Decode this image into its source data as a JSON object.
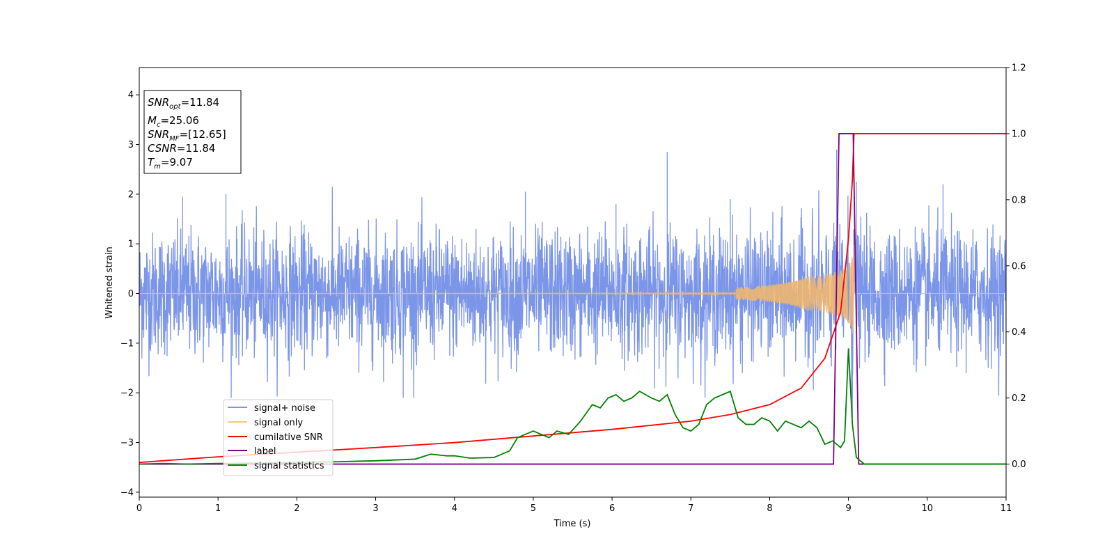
{
  "chart_data": {
    "type": "line",
    "xlabel": "Time (s)",
    "ylabel": "Whitened strain",
    "xlim": [
      0,
      11
    ],
    "ylim": [
      -4.1,
      4.55
    ],
    "y2lim": [
      -0.1,
      1.2
    ],
    "xticks": [
      "0",
      "1",
      "2",
      "3",
      "4",
      "5",
      "6",
      "7",
      "8",
      "9",
      "10",
      "11"
    ],
    "yticks": [
      "−4",
      "−3",
      "−2",
      "−1",
      "0",
      "1",
      "2",
      "3",
      "4"
    ],
    "y2ticks": [
      "0.0",
      "0.2",
      "0.4",
      "0.6",
      "0.8",
      "1.0",
      "1.2"
    ],
    "info_box": {
      "snr_opt": {
        "sym": "SNR",
        "sub": "opt",
        "value": "=11.84"
      },
      "mc": {
        "sym": "M",
        "sub": "c",
        "value": "=25.06"
      },
      "snr_mf": {
        "sym": "SNR",
        "sub": "MF",
        "value": "=[12.65]"
      },
      "csnr": {
        "sym": "CSNR",
        "sub": "",
        "value": "=11.84"
      },
      "tm": {
        "sym": "T",
        "sub": "m",
        "value": "=9.07"
      }
    },
    "legend": {
      "position": "lower-left",
      "entries": [
        {
          "label": "signal+ noise",
          "color": "#7b95e8"
        },
        {
          "label": "signal only",
          "color": "#f5c97a"
        },
        {
          "label": "cumilative SNR",
          "color": "#ff0000"
        },
        {
          "label": "label",
          "color": "#800080"
        },
        {
          "label": "signal statistics",
          "color": "#008000"
        }
      ]
    },
    "series": [
      {
        "name": "signal+ noise",
        "axis": "left",
        "color": "#6d8ae6",
        "description_type": "noise",
        "sample_count": 3300,
        "std": 0.62,
        "peaks": [
          [
            0.55,
            1.95
          ],
          [
            1.1,
            2.0
          ],
          [
            2.45,
            2.15
          ],
          [
            3.35,
            -2.1
          ],
          [
            4.9,
            2.05
          ],
          [
            6.05,
            1.8
          ],
          [
            6.7,
            2.85
          ],
          [
            7.5,
            1.9
          ],
          [
            8.85,
            2.9
          ],
          [
            9.05,
            -2.5
          ],
          [
            9.1,
            2.25
          ],
          [
            10.2,
            2.2
          ]
        ]
      },
      {
        "name": "signal only",
        "axis": "left",
        "color": "#f5b86a",
        "description_type": "chirp",
        "merger_time": 9.07,
        "peak_amplitude": 1.2
      },
      {
        "name": "cumilative SNR",
        "axis": "right",
        "color": "#ff0000",
        "x": [
          0,
          1,
          2,
          3,
          4,
          5,
          6,
          7,
          7.5,
          8,
          8.4,
          8.7,
          8.9,
          9.0,
          9.05,
          9.07,
          11
        ],
        "y": [
          0.005,
          0.022,
          0.036,
          0.05,
          0.065,
          0.085,
          0.105,
          0.13,
          0.15,
          0.18,
          0.23,
          0.32,
          0.46,
          0.68,
          0.86,
          1.0,
          1.0
        ]
      },
      {
        "name": "label",
        "axis": "right",
        "color": "#800080",
        "x": [
          0,
          8.81,
          8.88,
          9.06,
          9.13,
          11
        ],
        "y": [
          0,
          0,
          1,
          1,
          0,
          0
        ]
      },
      {
        "name": "signal statistics",
        "axis": "right",
        "color": "#008000",
        "x": [
          0,
          0.3,
          0.6,
          1,
          1.5,
          2,
          2.5,
          3,
          3.5,
          3.7,
          3.9,
          4.0,
          4.2,
          4.5,
          4.7,
          4.8,
          4.9,
          5.0,
          5.1,
          5.2,
          5.3,
          5.45,
          5.6,
          5.75,
          5.85,
          5.95,
          6.05,
          6.15,
          6.25,
          6.35,
          6.5,
          6.6,
          6.7,
          6.8,
          6.9,
          7.0,
          7.1,
          7.2,
          7.3,
          7.4,
          7.5,
          7.6,
          7.7,
          7.8,
          7.9,
          8.0,
          8.1,
          8.2,
          8.3,
          8.4,
          8.5,
          8.6,
          8.7,
          8.8,
          8.9,
          8.95,
          9.0,
          9.05,
          9.1,
          9.2,
          11
        ],
        "y": [
          0.0,
          0.002,
          0.0,
          0.002,
          0.003,
          0.005,
          0.007,
          0.01,
          0.015,
          0.03,
          0.025,
          0.025,
          0.018,
          0.02,
          0.04,
          0.08,
          0.09,
          0.1,
          0.09,
          0.08,
          0.1,
          0.09,
          0.13,
          0.18,
          0.17,
          0.2,
          0.21,
          0.19,
          0.2,
          0.22,
          0.2,
          0.19,
          0.21,
          0.15,
          0.11,
          0.1,
          0.12,
          0.18,
          0.2,
          0.21,
          0.22,
          0.14,
          0.12,
          0.12,
          0.14,
          0.13,
          0.1,
          0.13,
          0.12,
          0.11,
          0.13,
          0.11,
          0.06,
          0.07,
          0.05,
          0.07,
          0.35,
          0.12,
          0.02,
          0.0,
          0.0
        ]
      }
    ]
  }
}
